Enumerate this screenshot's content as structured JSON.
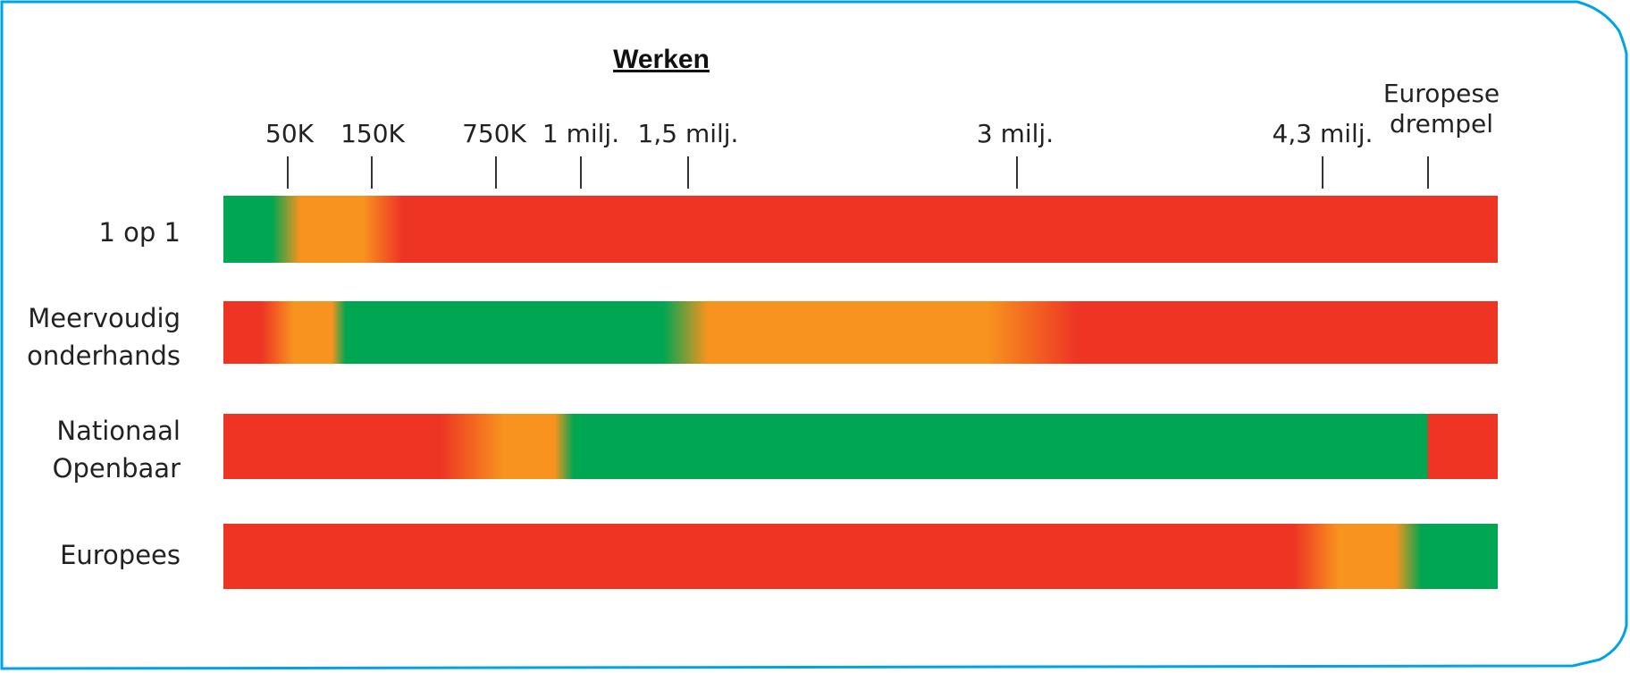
{
  "chart_data": {
    "type": "heatmap",
    "title": "Werken",
    "axis_ticks": [
      {
        "label": "50K",
        "value": 50000
      },
      {
        "label": "150K",
        "value": 150000
      },
      {
        "label": "750K",
        "value": 750000
      },
      {
        "label": "1 milj.",
        "value": 1000000
      },
      {
        "label": "1,5 milj.",
        "value": 1500000
      },
      {
        "label": "3 milj.",
        "value": 3000000
      },
      {
        "label": "4,3 milj.",
        "value": 4300000
      },
      {
        "label": "Europese drempel",
        "value": 5538000
      }
    ],
    "legend": "none",
    "colors": {
      "green": "#00a651",
      "orange": "#f7931e",
      "red": "#ee3524"
    },
    "rows": [
      {
        "label": "1 op 1",
        "stops": [
          {
            "color": "green",
            "at": 0.0
          },
          {
            "color": "green",
            "at": 0.038
          },
          {
            "color": "orange",
            "at": 0.06
          },
          {
            "color": "orange",
            "at": 0.11
          },
          {
            "color": "red",
            "at": 0.14
          },
          {
            "color": "red",
            "at": 1.0
          }
        ]
      },
      {
        "label": "Meervoudig onderhands",
        "stops": [
          {
            "color": "red",
            "at": 0.0
          },
          {
            "color": "red",
            "at": 0.03
          },
          {
            "color": "orange",
            "at": 0.055
          },
          {
            "color": "orange",
            "at": 0.085
          },
          {
            "color": "green",
            "at": 0.096
          },
          {
            "color": "green",
            "at": 0.345
          },
          {
            "color": "orange",
            "at": 0.38
          },
          {
            "color": "orange",
            "at": 0.6
          },
          {
            "color": "red",
            "at": 0.67
          },
          {
            "color": "red",
            "at": 1.0
          }
        ]
      },
      {
        "label": "Nationaal Openbaar",
        "stops": [
          {
            "color": "red",
            "at": 0.0
          },
          {
            "color": "red",
            "at": 0.17
          },
          {
            "color": "orange",
            "at": 0.22
          },
          {
            "color": "orange",
            "at": 0.26
          },
          {
            "color": "green",
            "at": 0.275
          },
          {
            "color": "green",
            "at": 0.944
          },
          {
            "color": "red",
            "at": 0.946
          },
          {
            "color": "red",
            "at": 1.0
          }
        ]
      },
      {
        "label": "Europees",
        "stops": [
          {
            "color": "red",
            "at": 0.0
          },
          {
            "color": "red",
            "at": 0.84
          },
          {
            "color": "orange",
            "at": 0.875
          },
          {
            "color": "orange",
            "at": 0.92
          },
          {
            "color": "green",
            "at": 0.94
          },
          {
            "color": "green",
            "at": 1.0
          }
        ]
      }
    ]
  }
}
